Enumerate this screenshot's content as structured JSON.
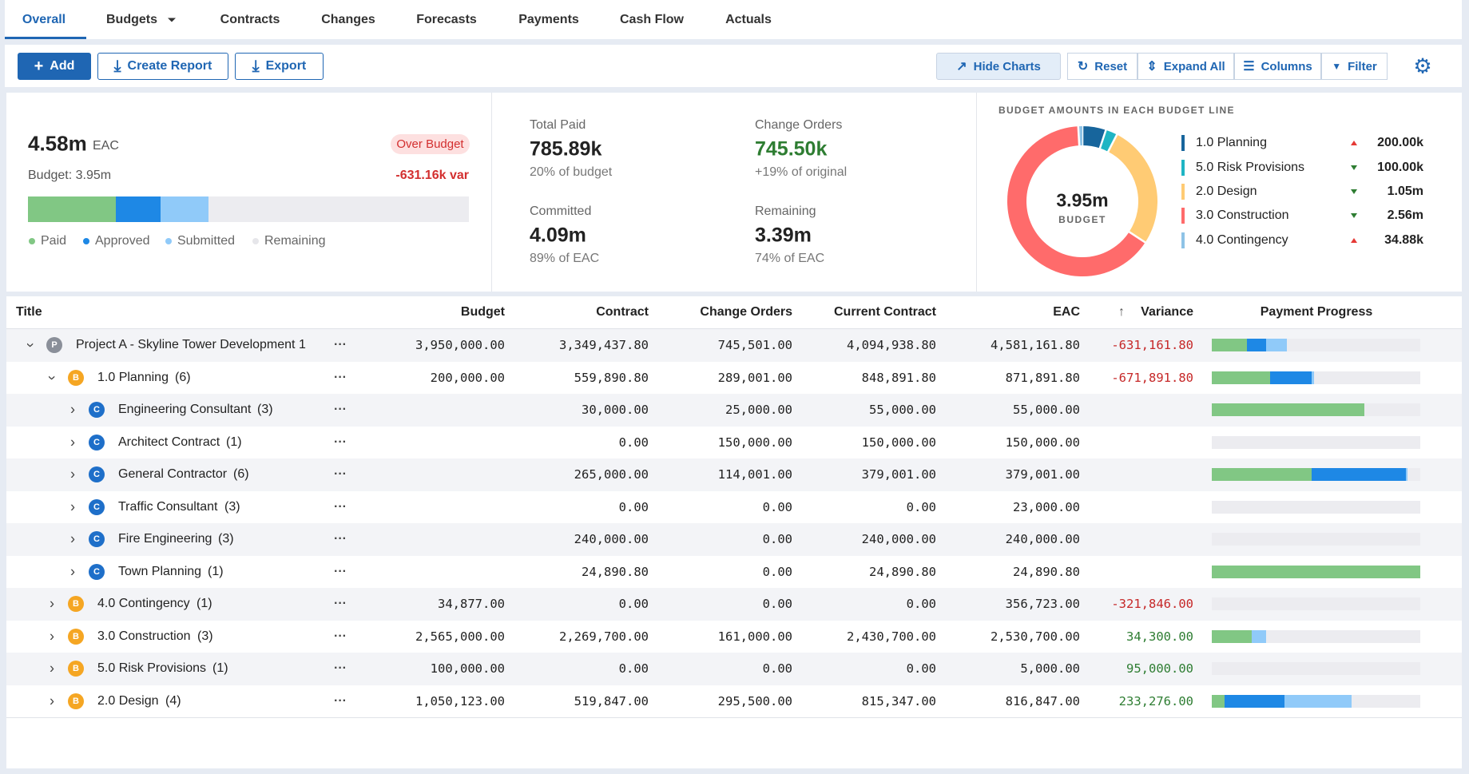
{
  "tabs": [
    {
      "label": "Overall",
      "active": true
    },
    {
      "label": "Budgets",
      "dropdown": true
    },
    {
      "label": "Contracts"
    },
    {
      "label": "Changes"
    },
    {
      "label": "Forecasts"
    },
    {
      "label": "Payments"
    },
    {
      "label": "Cash Flow"
    },
    {
      "label": "Actuals"
    }
  ],
  "toolbar": {
    "left": [
      "Add",
      "Create Report",
      "Export"
    ],
    "right": [
      "Hide Charts",
      "Reset",
      "Expand All",
      "Columns",
      "Filter"
    ]
  },
  "summary": {
    "eac_value": "4.58m",
    "eac_label": "EAC",
    "status": "Over Budget",
    "budget": "Budget: 3.95m",
    "variance": "-631.16k var",
    "progress": {
      "paid": 20,
      "approved": 10,
      "submitted": 11
    },
    "legend": [
      "Paid",
      "Approved",
      "Submitted",
      "Remaining"
    ]
  },
  "stats": [
    {
      "label": "Total Paid",
      "value": "785.89k",
      "note": "20% of budget"
    },
    {
      "label": "Change Orders",
      "value": "745.50k",
      "note": "+19% of original",
      "highlight": true
    },
    {
      "label": "Committed",
      "value": "4.09m",
      "note": "89% of EAC"
    },
    {
      "label": "Remaining",
      "value": "3.39m",
      "note": "74% of EAC"
    }
  ],
  "budget_chart": {
    "title": "BUDGET AMOUNTS IN EACH BUDGET LINE",
    "center_value": "3.95m",
    "center_label": "BUDGET",
    "items": [
      {
        "name": "1.0 Planning",
        "color": "#17659c",
        "trend": "up",
        "value": 200000,
        "value_label": "200.00k"
      },
      {
        "name": "5.0 Risk Provisions",
        "color": "#1fb5c4",
        "trend": "down",
        "value": 100000,
        "value_label": "100.00k"
      },
      {
        "name": "2.0 Design",
        "color": "#ffcb74",
        "trend": "down",
        "value": 1050000,
        "value_label": "1.05m"
      },
      {
        "name": "3.0 Construction",
        "color": "#ff6b6b",
        "trend": "down",
        "value": 2560000,
        "value_label": "2.56m"
      },
      {
        "name": "4.0 Contingency",
        "color": "#8ec3e6",
        "trend": "up",
        "value": 34880,
        "value_label": "34.88k"
      }
    ]
  },
  "table": {
    "columns": [
      "Title",
      "Budget",
      "Contract",
      "Change Orders",
      "Current Contract",
      "EAC",
      "Variance",
      "Payment Progress"
    ],
    "sorted_column": 6,
    "rows": [
      {
        "level": 0,
        "badge": "P",
        "title": "Project A - Skyline Tower Development 1",
        "count": null,
        "expanded": true,
        "cells": [
          "3,950,000.00",
          "3,349,437.80",
          "745,501.00",
          "4,094,938.80",
          "4,581,161.80",
          "-631,161.80"
        ],
        "progress": [
          17,
          9,
          10
        ]
      },
      {
        "level": 1,
        "badge": "B",
        "title": "1.0 Planning",
        "count": "(6)",
        "expanded": true,
        "cells": [
          "200,000.00",
          "559,890.80",
          "289,001.00",
          "848,891.80",
          "871,891.80",
          "-671,891.80"
        ],
        "progress": [
          28,
          20,
          1
        ]
      },
      {
        "level": 2,
        "badge": "C",
        "title": "Engineering Consultant",
        "count": "(3)",
        "expanded": false,
        "cells": [
          null,
          "30,000.00",
          "25,000.00",
          "55,000.00",
          "55,000.00",
          null
        ],
        "progress": [
          73,
          0,
          0
        ]
      },
      {
        "level": 2,
        "badge": "C",
        "title": "Architect Contract",
        "count": "(1)",
        "expanded": false,
        "cells": [
          null,
          "0.00",
          "150,000.00",
          "150,000.00",
          "150,000.00",
          null
        ],
        "progress": [
          0,
          0,
          0
        ]
      },
      {
        "level": 2,
        "badge": "C",
        "title": "General Contractor",
        "count": "(6)",
        "expanded": false,
        "cells": [
          null,
          "265,000.00",
          "114,001.00",
          "379,001.00",
          "379,001.00",
          null
        ],
        "progress": [
          48,
          45,
          1
        ]
      },
      {
        "level": 2,
        "badge": "C",
        "title": "Traffic Consultant",
        "count": "(3)",
        "expanded": false,
        "cells": [
          null,
          "0.00",
          "0.00",
          "0.00",
          "23,000.00",
          null
        ],
        "progress": [
          0,
          0,
          0
        ]
      },
      {
        "level": 2,
        "badge": "C",
        "title": "Fire Engineering",
        "count": "(3)",
        "expanded": false,
        "cells": [
          null,
          "240,000.00",
          "0.00",
          "240,000.00",
          "240,000.00",
          null
        ],
        "progress": [
          0,
          0,
          0
        ]
      },
      {
        "level": 2,
        "badge": "C",
        "title": "Town Planning",
        "count": "(1)",
        "expanded": false,
        "cells": [
          null,
          "24,890.80",
          "0.00",
          "24,890.80",
          "24,890.80",
          null
        ],
        "progress": [
          100,
          0,
          0
        ]
      },
      {
        "level": 1,
        "badge": "B",
        "title": "4.0 Contingency",
        "count": "(1)",
        "expanded": false,
        "cells": [
          "34,877.00",
          "0.00",
          "0.00",
          "0.00",
          "356,723.00",
          "-321,846.00"
        ],
        "progress": [
          0,
          0,
          0
        ]
      },
      {
        "level": 1,
        "badge": "B",
        "title": "3.0 Construction",
        "count": "(3)",
        "expanded": false,
        "cells": [
          "2,565,000.00",
          "2,269,700.00",
          "161,000.00",
          "2,430,700.00",
          "2,530,700.00",
          "34,300.00"
        ],
        "progress": [
          19,
          0,
          7
        ]
      },
      {
        "level": 1,
        "badge": "B",
        "title": "5.0 Risk Provisions",
        "count": "(1)",
        "expanded": false,
        "cells": [
          "100,000.00",
          "0.00",
          "0.00",
          "0.00",
          "5,000.00",
          "95,000.00"
        ],
        "progress": [
          0,
          0,
          0
        ]
      },
      {
        "level": 1,
        "badge": "B",
        "title": "2.0 Design",
        "count": "(4)",
        "expanded": false,
        "cells": [
          "1,050,123.00",
          "519,847.00",
          "295,500.00",
          "815,347.00",
          "816,847.00",
          "233,276.00"
        ],
        "progress": [
          6,
          29,
          32
        ]
      }
    ]
  }
}
